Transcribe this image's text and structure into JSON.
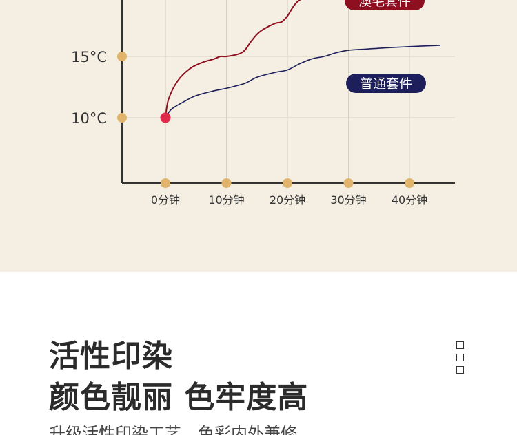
{
  "chart_data": {
    "type": "line",
    "xlabel": "",
    "ylabel": "",
    "x_ticks": [
      "0分钟",
      "10分钟",
      "20分钟",
      "30分钟",
      "40分钟"
    ],
    "y_ticks": [
      "10°C",
      "15°C"
    ],
    "grid": true,
    "series": [
      {
        "name": "澳毛套件",
        "color": "#8e1020",
        "x": [
          0,
          0.5,
          2,
          4,
          6,
          8,
          9,
          10,
          12,
          13,
          14,
          15,
          16,
          18,
          19,
          20,
          21,
          22,
          24,
          26,
          28
        ],
        "y": [
          10,
          11.5,
          13,
          14,
          14.5,
          14.8,
          15,
          15,
          15.2,
          15.5,
          16.2,
          16.8,
          17.2,
          17.7,
          17.8,
          18.3,
          19.1,
          19.6,
          20.0,
          20.4,
          20.8
        ]
      },
      {
        "name": "普通套件",
        "color": "#1c1f5a",
        "x": [
          0,
          1,
          3,
          5,
          8,
          10,
          13,
          15,
          18,
          20,
          22,
          24,
          26,
          28,
          30,
          33,
          36,
          40,
          45
        ],
        "y": [
          10,
          10.7,
          11.3,
          11.8,
          12.2,
          12.4,
          12.8,
          13.3,
          13.7,
          13.9,
          14.4,
          14.8,
          15.0,
          15.3,
          15.5,
          15.6,
          15.7,
          15.8,
          15.9
        ]
      }
    ]
  },
  "text": {
    "headline_line1": "活性印染",
    "headline_line2": "颜色靓丽 色牢度高",
    "subtitle": "升级活性印染工艺，色彩内外兼修"
  }
}
